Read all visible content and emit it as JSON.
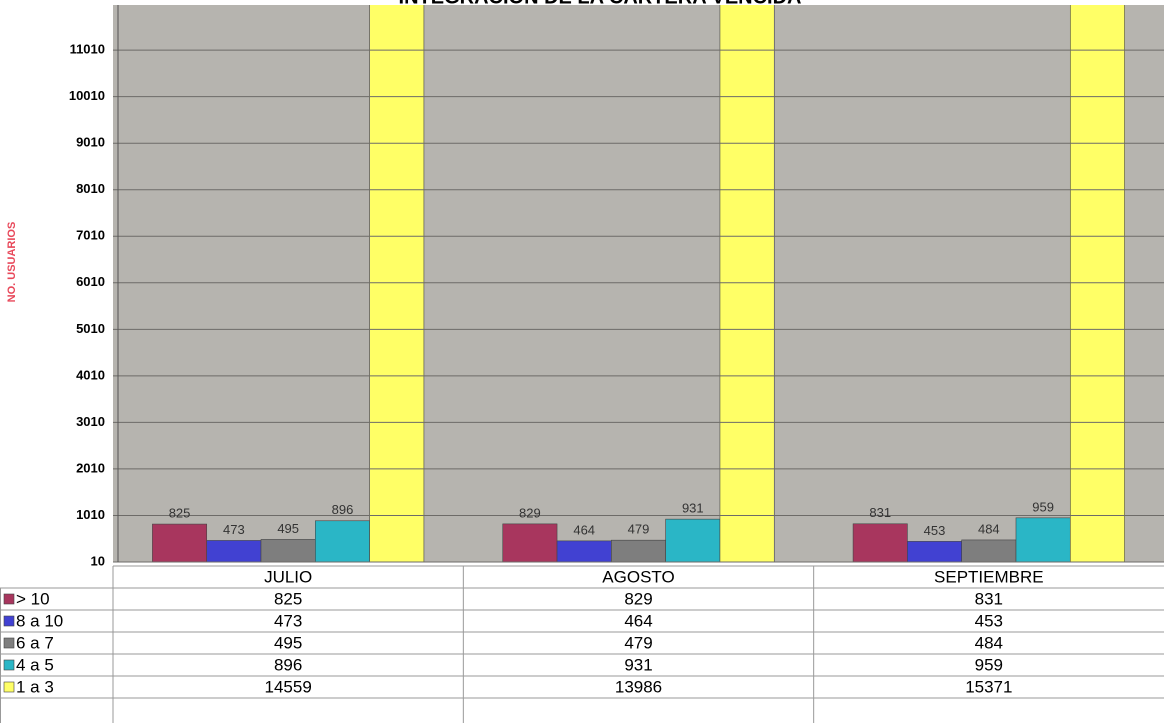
{
  "chart_data": {
    "type": "bar",
    "title": "INTEGRACION DE LA CARTERA VENCIDA",
    "y_label": "NO. USUARIOS",
    "categories": [
      "JULIO",
      "AGOSTO",
      "SEPTIEMBRE"
    ],
    "series": [
      {
        "name": "> 10",
        "color": "#a8365e",
        "values": [
          825,
          829,
          831
        ]
      },
      {
        "name": "8 a 10",
        "color": "#4141d2",
        "values": [
          473,
          464,
          453
        ]
      },
      {
        "name": "6 a 7",
        "color": "#7e7e7e",
        "values": [
          495,
          479,
          484
        ]
      },
      {
        "name": "4 a 5",
        "color": "#2ab6c6",
        "values": [
          896,
          931,
          959
        ]
      },
      {
        "name": "1 a 3",
        "color": "#ffff66",
        "values": [
          14559,
          13986,
          15371
        ]
      }
    ],
    "ylim": [
      10,
      11980
    ],
    "yticks": [
      10,
      1010,
      2010,
      3010,
      4010,
      5010,
      6010,
      7010,
      8010,
      9010,
      10010,
      11010
    ],
    "grid": true
  }
}
